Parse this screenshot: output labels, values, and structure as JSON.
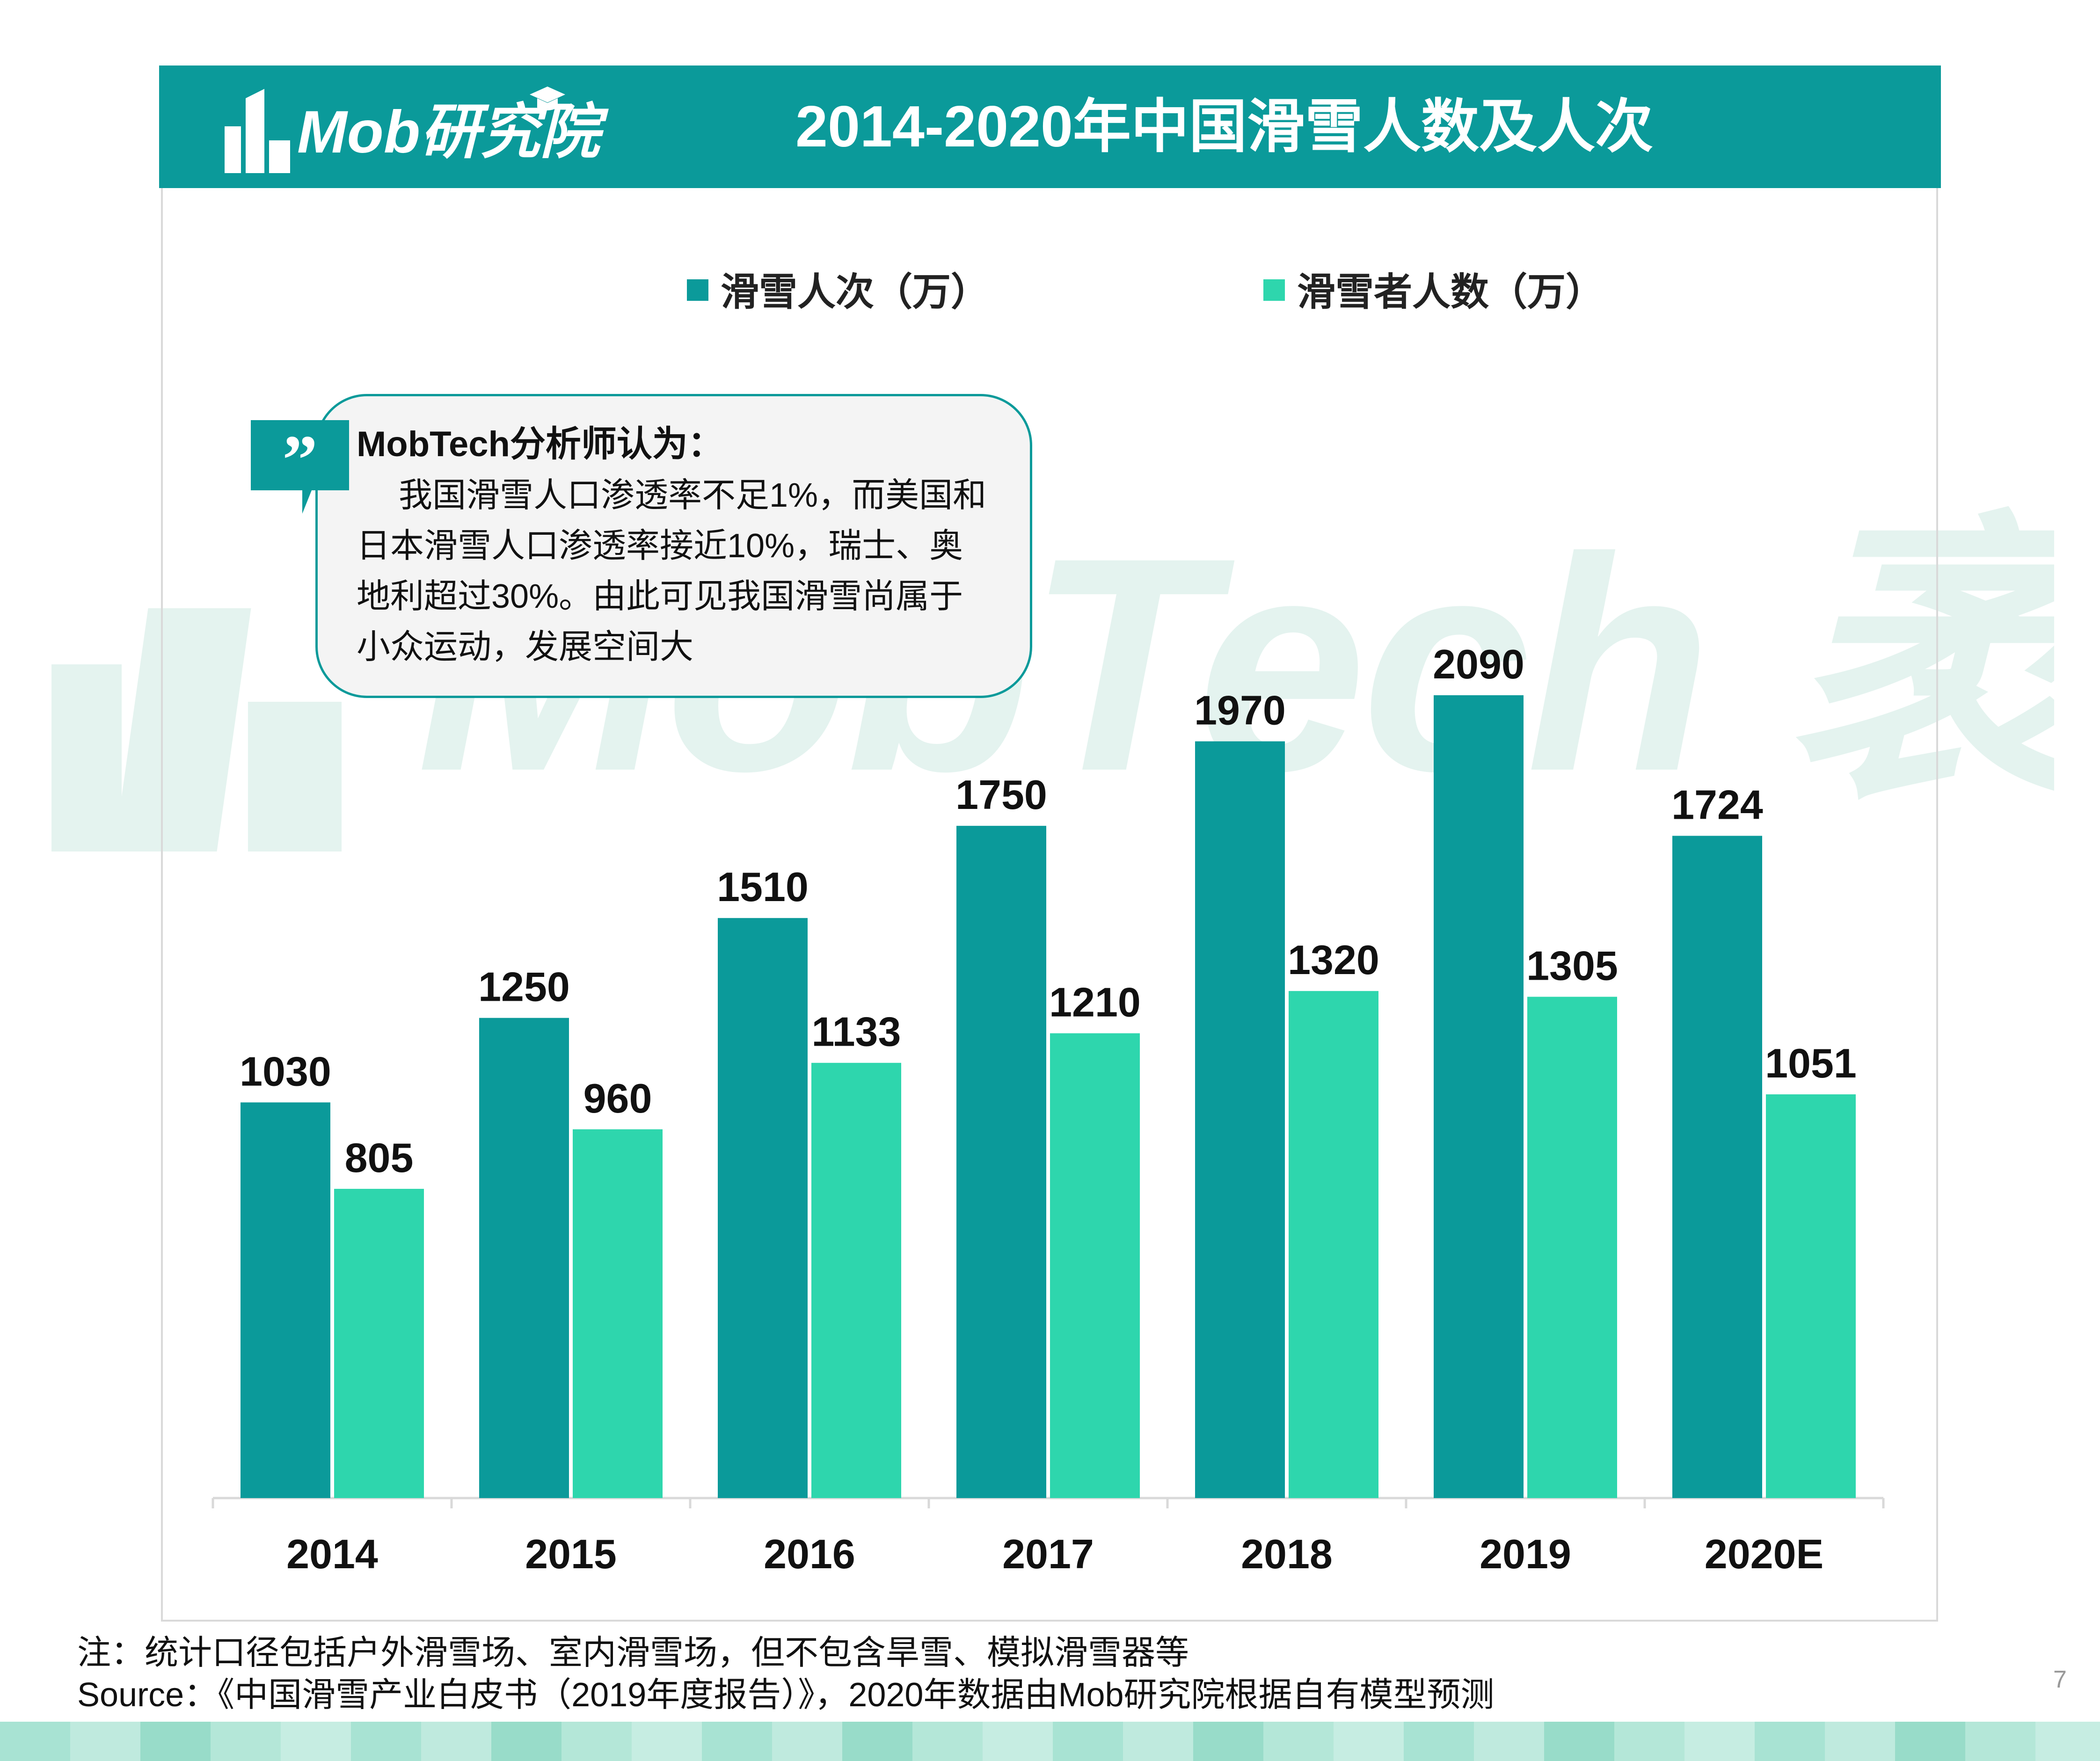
{
  "header": {
    "logo_text": "Mob研究院",
    "title": "2014-2020年中国滑雪人数及人次"
  },
  "watermark": {
    "text": "MobTech 袤博"
  },
  "legend": {
    "items": [
      {
        "label": "滑雪人次（万）",
        "color": "#0b9a9a"
      },
      {
        "label": "滑雪者人数（万）",
        "color": "#2ed6ad"
      }
    ]
  },
  "callout": {
    "title": "MobTech分析师认为：",
    "lines": [
      "我国滑雪人口渗透率不足1%，而美国和",
      "日本滑雪人口渗透率接近10%，瑞士、奥",
      "地利超过30%。由此可见我国滑雪尚属于",
      "小众运动，发展空间大"
    ]
  },
  "chart_data": {
    "type": "bar",
    "title": "2014-2020年中国滑雪人数及人次",
    "categories": [
      "2014",
      "2015",
      "2016",
      "2017",
      "2018",
      "2019",
      "2020E"
    ],
    "series": [
      {
        "name": "滑雪人次（万）",
        "color": "#0b9a9a",
        "values": [
          1030,
          1250,
          1510,
          1750,
          1970,
          2090,
          1724
        ]
      },
      {
        "name": "滑雪者人数（万）",
        "color": "#2ed6ad",
        "values": [
          805,
          960,
          1133,
          1210,
          1320,
          1305,
          1051
        ]
      }
    ],
    "ylim": [
      0,
      2800
    ],
    "grid": false,
    "legend_position": "top",
    "data_labels": true
  },
  "notes": {
    "note": "注：统计口径包括户外滑雪场、室内滑雪场，但不包含旱雪、模拟滑雪器等",
    "source": "Source：《中国滑雪产业白皮书（2019年度报告）》，2020年数据由Mob研究院根据自有模型预测"
  },
  "page_number": "7"
}
